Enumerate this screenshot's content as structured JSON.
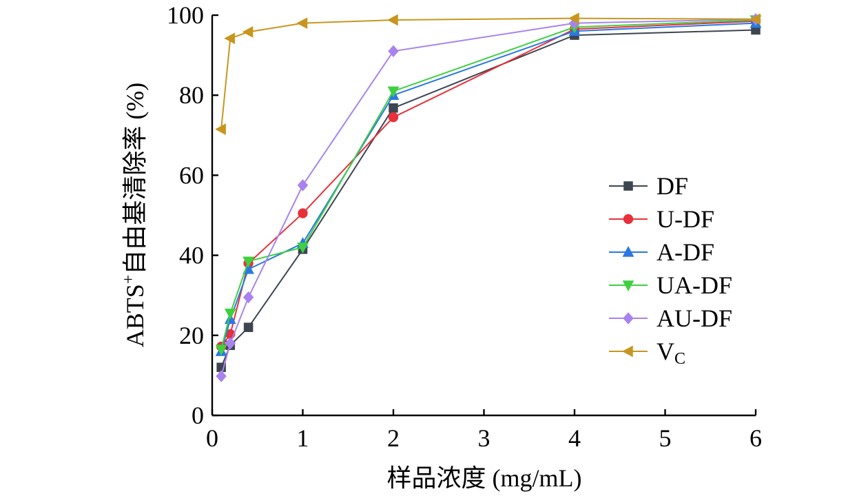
{
  "chart_data": {
    "type": "line",
    "xlabel": "样品浓度 (mg/mL)",
    "ylabel_prefix": "ABTS",
    "ylabel_sup": "+",
    "ylabel_rest": "自由基清除率 (%)",
    "xlim": [
      0,
      6
    ],
    "ylim": [
      0,
      100
    ],
    "xticks": [
      0,
      1,
      2,
      3,
      4,
      5,
      6
    ],
    "yticks": [
      0,
      20,
      40,
      60,
      80,
      100
    ],
    "grid": false,
    "legend_position": "right",
    "series": [
      {
        "name": "DF",
        "color": "#3c4550",
        "marker": "square",
        "x": [
          0.1,
          0.2,
          0.4,
          1,
          2,
          4,
          6
        ],
        "y": [
          12.0,
          17.5,
          22.0,
          41.5,
          76.8,
          95.0,
          96.3
        ]
      },
      {
        "name": "U-DF",
        "color": "#e8303a",
        "marker": "circle",
        "x": [
          0.1,
          0.2,
          0.4,
          1,
          2,
          4,
          6
        ],
        "y": [
          17.2,
          20.3,
          38.0,
          50.5,
          74.5,
          96.5,
          98.5
        ]
      },
      {
        "name": "A-DF",
        "color": "#2a78e4",
        "marker": "triangle-up",
        "x": [
          0.1,
          0.2,
          0.4,
          1,
          2,
          4,
          6
        ],
        "y": [
          16.0,
          24.0,
          36.5,
          43.0,
          80.0,
          96.0,
          98.0
        ]
      },
      {
        "name": "UA-DF",
        "color": "#3fd040",
        "marker": "triangle-down",
        "x": [
          0.1,
          0.2,
          0.4,
          1,
          2,
          4,
          6
        ],
        "y": [
          16.5,
          25.5,
          38.5,
          42.0,
          81.0,
          97.0,
          98.8
        ]
      },
      {
        "name": "AU-DF",
        "color": "#a883ee",
        "marker": "diamond",
        "x": [
          0.1,
          0.2,
          0.4,
          1,
          2,
          4,
          6
        ],
        "y": [
          9.8,
          18.0,
          29.5,
          57.5,
          91.0,
          98.0,
          99.0
        ]
      },
      {
        "name": "V",
        "name_sub": "C",
        "color": "#c8961e",
        "marker": "triangle-left",
        "x": [
          0.1,
          0.2,
          0.4,
          1,
          2,
          4,
          6
        ],
        "y": [
          71.5,
          94.2,
          95.8,
          98.0,
          98.8,
          99.2,
          99.0
        ]
      }
    ]
  }
}
